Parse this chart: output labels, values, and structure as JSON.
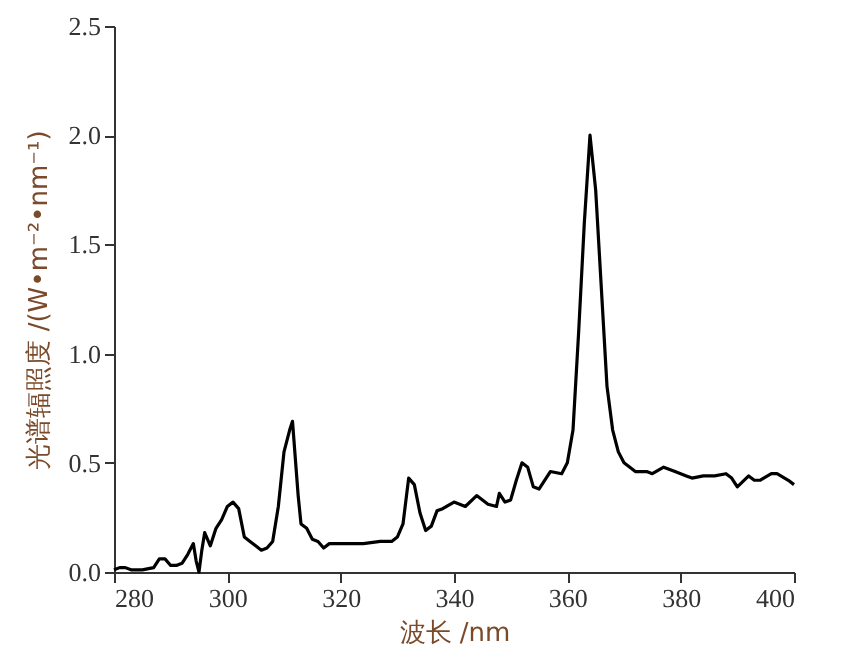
{
  "chart_data": {
    "type": "line",
    "xlabel": "波长 /nm",
    "ylabel": "光谱辐照度 /(W•m⁻²•nm⁻¹)",
    "xlim": [
      280,
      400
    ],
    "xticks": [
      280,
      300,
      320,
      340,
      360,
      380,
      400
    ],
    "ylim": [
      0,
      2.5
    ],
    "yticks": [
      {
        "value": 0,
        "label": "0.0"
      },
      {
        "value": 0.5,
        "label": "0.5"
      },
      {
        "value": 1,
        "label": "1.0"
      },
      {
        "value": 1.5,
        "label": "1.5"
      },
      {
        "value": 2,
        "label": "2.0"
      },
      {
        "value": 2.5,
        "label": "2.5"
      }
    ],
    "grid": false,
    "marker": "none",
    "line_style": "solid",
    "series": [
      {
        "color": "#000000",
        "x": [
          280,
          281,
          282,
          283,
          285,
          287,
          288,
          289,
          290,
          291,
          292,
          293,
          294,
          294.5,
          295,
          295.5,
          296,
          297,
          298,
          299,
          300,
          301,
          302,
          303,
          304,
          305,
          306,
          307,
          308,
          309,
          310,
          311,
          311.5,
          312.5,
          313,
          314,
          315,
          316,
          317,
          318,
          320,
          324,
          327,
          329,
          330,
          331,
          332,
          333,
          334,
          335,
          336,
          337,
          338,
          340,
          342,
          344,
          346,
          347.5,
          348,
          349,
          350,
          351,
          352,
          353,
          354,
          355,
          357,
          359,
          360,
          361,
          362,
          363,
          364,
          365,
          366,
          367,
          368,
          369,
          370,
          372,
          374,
          375,
          377,
          379,
          381,
          382,
          384,
          386,
          388,
          389,
          390,
          392,
          393,
          394,
          396,
          397,
          399,
          400
        ],
        "values": [
          0.01,
          0.02,
          0.02,
          0.01,
          0.01,
          0.02,
          0.06,
          0.06,
          0.03,
          0.03,
          0.04,
          0.08,
          0.13,
          0.05,
          0.0,
          0.1,
          0.18,
          0.12,
          0.2,
          0.24,
          0.3,
          0.32,
          0.29,
          0.16,
          0.14,
          0.12,
          0.1,
          0.11,
          0.14,
          0.3,
          0.55,
          0.65,
          0.69,
          0.35,
          0.22,
          0.2,
          0.15,
          0.14,
          0.11,
          0.13,
          0.13,
          0.13,
          0.14,
          0.14,
          0.16,
          0.22,
          0.43,
          0.4,
          0.27,
          0.19,
          0.21,
          0.28,
          0.29,
          0.32,
          0.3,
          0.35,
          0.31,
          0.3,
          0.36,
          0.32,
          0.33,
          0.42,
          0.5,
          0.48,
          0.39,
          0.38,
          0.46,
          0.45,
          0.5,
          0.65,
          1.1,
          1.6,
          2.0,
          1.75,
          1.3,
          0.85,
          0.65,
          0.55,
          0.5,
          0.46,
          0.46,
          0.45,
          0.48,
          0.46,
          0.44,
          0.43,
          0.44,
          0.44,
          0.45,
          0.43,
          0.39,
          0.44,
          0.42,
          0.42,
          0.45,
          0.45,
          0.42,
          0.4
        ]
      }
    ]
  }
}
